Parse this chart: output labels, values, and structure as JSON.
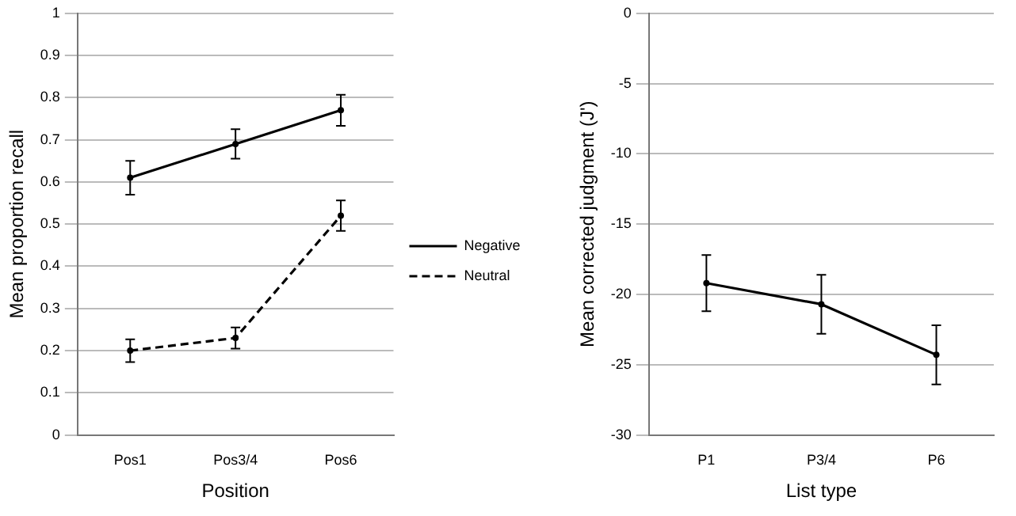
{
  "chart_data": [
    {
      "type": "line",
      "xlabel": "Position",
      "ylabel": "Mean proportion recall",
      "categories": [
        "Pos1",
        "Pos3/4",
        "Pos6"
      ],
      "series": [
        {
          "name": "Negative",
          "color": "#000000",
          "values": [
            0.61,
            0.69,
            0.77
          ],
          "errors": [
            0.04,
            0.035,
            0.037
          ],
          "line_style": "solid",
          "marker": "circle"
        },
        {
          "name": "Neutral",
          "color": "#000000",
          "values": [
            0.2,
            0.23,
            0.52
          ],
          "errors": [
            0.027,
            0.025,
            0.036
          ],
          "line_style": "dashed",
          "marker": "circle"
        }
      ],
      "ylim": [
        0,
        1
      ],
      "yticks": [
        0,
        0.1,
        0.2,
        0.3,
        0.4,
        0.5,
        0.6,
        0.7,
        0.8,
        0.9,
        1
      ],
      "grid": "y",
      "legend": "right"
    },
    {
      "type": "line",
      "xlabel": "List type",
      "ylabel": "Mean corrected judgment (J')",
      "categories": [
        "P1",
        "P3/4",
        "P6"
      ],
      "series": [
        {
          "color": "#000000",
          "values": [
            -19.2,
            -20.7,
            -24.3
          ],
          "errors": [
            2.0,
            2.1,
            2.1
          ],
          "line_style": "solid",
          "marker": "circle"
        }
      ],
      "ylim": [
        -30,
        0
      ],
      "yticks": [
        -30,
        -25,
        -20,
        -15,
        -10,
        -5,
        0
      ],
      "grid": "y"
    }
  ]
}
